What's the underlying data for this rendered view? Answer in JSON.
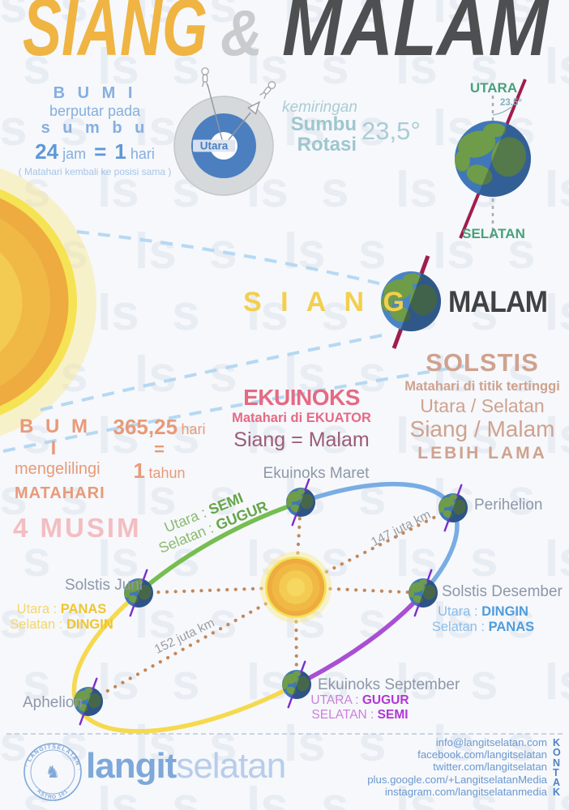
{
  "title": {
    "siang": "SIANG",
    "amp": "&",
    "malam": "MALAM"
  },
  "rotation": {
    "heading": "B U M I",
    "line2": "berputar pada",
    "line3": "s u m b u",
    "n24": "24",
    "jam": "jam",
    "eq": "=",
    "n1": "1",
    "hari": "hari",
    "note": "( Matahari kembali ke posisi sama )",
    "top_label": "Utara"
  },
  "tilt": {
    "pre": "kemiringan",
    "bold1": "Sumbu",
    "bold2": "Rotasi",
    "angle": "23,5°",
    "globe_top": "UTARA",
    "globe_angle": "23.5°",
    "globe_bottom": "SELATAN"
  },
  "daynight": {
    "siang": "S I A N G",
    "malam": "MALAM"
  },
  "solstis": {
    "heading": "SOLSTIS",
    "line1": "Matahari di titik tertinggi",
    "line2": "Utara / Selatan",
    "line3": "Siang / Malam",
    "line4": "LEBIH LAMA"
  },
  "revolution": {
    "heading": "B U M I",
    "line2": "mengelilingi",
    "line3": "MATAHARI",
    "days": "365,25",
    "days_unit": "hari",
    "eq": "=",
    "years": "1",
    "years_unit": "tahun"
  },
  "ekuinoks": {
    "heading": "EKUINOKS",
    "line1": "Matahari di EKUATOR",
    "line2": "Siang = Malam"
  },
  "musim": {
    "heading": "4 MUSIM"
  },
  "orbit": {
    "ekuinoks_maret": "Ekuinoks Maret",
    "maret_utara_label": "Utara : ",
    "maret_utara": "SEMI",
    "maret_selatan_label": "Selatan : ",
    "maret_selatan": "GUGUR",
    "perihelion": "Perihelion",
    "jarak_perihelion": "147 juta km",
    "solstis_desember": "Solstis Desember",
    "desember_utara_label": "Utara : ",
    "desember_utara": "DINGIN",
    "desember_selatan_label": "Selatan : ",
    "desember_selatan": "PANAS",
    "ekuinoks_september": "Ekuinoks September",
    "september_utara_label": "UTARA : ",
    "september_utara": "GUGUR",
    "september_selatan_label": "SELATAN : ",
    "september_selatan": "SEMI",
    "aphelion": "Aphelion",
    "jarak_aphelion": "152 juta km",
    "solstis_juni": "Solstis Juni",
    "juni_utara_label": "Utara : ",
    "juni_utara": "PANAS",
    "juni_selatan_label": "Selatan : ",
    "juni_selatan": "DINGIN"
  },
  "footer": {
    "badge_top": "· LANGITSELATAN ·",
    "badge_bottom": "· ASTRO 101 ·",
    "logo_bold": "langit",
    "logo_light": "selatan",
    "contacts": [
      "info@langitselatan.com",
      "facebook.com/langitselatan",
      "twitter.com/langitselatan",
      "plus.google.com/+LangitselatanMedia",
      "instagram.com/langitselatanmedia"
    ],
    "kontak": "KONTAK"
  },
  "colors": {
    "accent_orange": "#efb442",
    "accent_dark": "#4d4f51",
    "blue_text": "#86aede",
    "teal_text": "#a9cdd5",
    "green_label": "#49a07c",
    "salmon": "#e89a79",
    "pink": "#e56a84",
    "plum": "#9b5b79",
    "tan": "#cfa28e",
    "arc_green": "#76bd52",
    "arc_blue": "#79ace4",
    "arc_purple": "#a94fd4",
    "arc_yellow": "#f6d94d",
    "axis_maroon": "#a01d4e",
    "axis_purple": "#7b2ecd",
    "dot_brown": "#c3875a",
    "ray_blue": "#b3d7f2",
    "footer_blue": "#6b98d0"
  }
}
